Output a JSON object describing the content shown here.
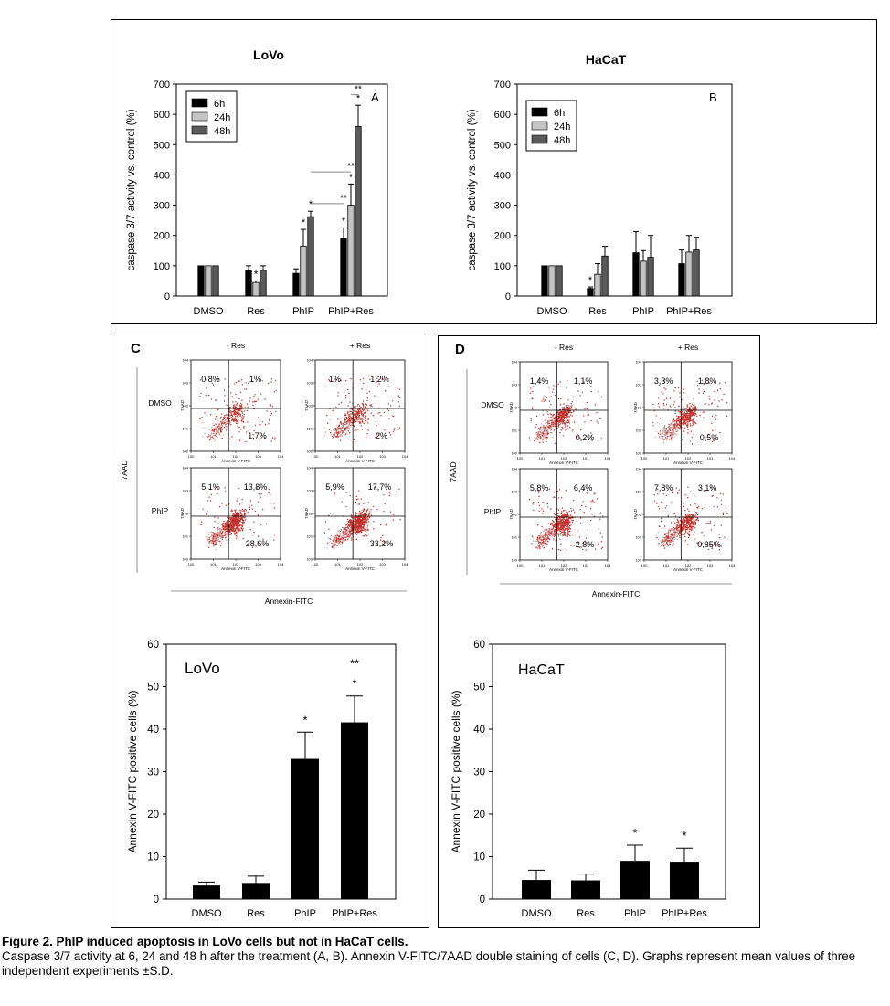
{
  "panels": {
    "A": {
      "letter": "A",
      "title": "LoVo"
    },
    "B": {
      "letter": "B",
      "title": "HaCaT"
    },
    "C": {
      "letter": "C"
    },
    "D": {
      "letter": "D"
    }
  },
  "colors": {
    "h6": "#000000",
    "h24": "#c4c4c4",
    "h48": "#5a5a5a",
    "dot": "#c0302a",
    "bar": "#000000"
  },
  "chart_data": [
    {
      "id": "A",
      "type": "bar",
      "title": "LoVo",
      "panel_letter": "A",
      "categories": [
        "DMSO",
        "Res",
        "PhIP",
        "PhIP+Res"
      ],
      "ylabel": "caspase 3/7 activity vs. control (%)",
      "xlabel": "",
      "ylim": [
        0,
        700
      ],
      "yticks": [
        0,
        100,
        200,
        300,
        400,
        500,
        600,
        700
      ],
      "legend_position": "top-left",
      "series": [
        {
          "name": "6h",
          "color": "#000000",
          "values": [
            100,
            85,
            75,
            190
          ],
          "errors": [
            0,
            15,
            15,
            35
          ]
        },
        {
          "name": "24h",
          "color": "#c4c4c4",
          "values": [
            100,
            45,
            165,
            300
          ],
          "errors": [
            0,
            5,
            55,
            70
          ]
        },
        {
          "name": "48h",
          "color": "#5a5a5a",
          "values": [
            100,
            85,
            262,
            560
          ],
          "errors": [
            0,
            15,
            18,
            70
          ]
        }
      ],
      "annotations": [
        {
          "label": "*",
          "cat": 1,
          "s": 1
        },
        {
          "label": "*",
          "cat": 2,
          "s": 1
        },
        {
          "label": "*",
          "cat": 2,
          "s": 2
        },
        {
          "label": "*",
          "cat": 3,
          "s": 0
        },
        {
          "label": "*",
          "cat": 3,
          "s": 1
        },
        {
          "label": "*",
          "cat": 3,
          "s": 2
        },
        {
          "label": "**",
          "cat": 3,
          "s": 0,
          "line_to": [
            2,
            2
          ],
          "y": 305
        },
        {
          "label": "**",
          "cat": 3,
          "s": 1,
          "line_to": [
            2,
            2
          ],
          "y": 410
        },
        {
          "label": "**",
          "cat": 3,
          "s": 2,
          "line_to": [
            3,
            1
          ],
          "y": 665
        }
      ]
    },
    {
      "id": "B",
      "type": "bar",
      "title": "HaCaT",
      "panel_letter": "B",
      "categories": [
        "DMSO",
        "Res",
        "PhIP",
        "PhIP+Res"
      ],
      "ylabel": "caspase 3/7 activity vs. control (%)",
      "xlabel": "",
      "ylim": [
        0,
        700
      ],
      "yticks": [
        0,
        100,
        200,
        300,
        400,
        500,
        600,
        700
      ],
      "legend_position": "top-left",
      "series": [
        {
          "name": "6h",
          "color": "#000000",
          "values": [
            100,
            25,
            143,
            107
          ],
          "errors": [
            0,
            5,
            70,
            45
          ]
        },
        {
          "name": "24h",
          "color": "#c4c4c4",
          "values": [
            100,
            72,
            115,
            145
          ],
          "errors": [
            0,
            35,
            35,
            55
          ]
        },
        {
          "name": "48h",
          "color": "#5a5a5a",
          "values": [
            100,
            132,
            128,
            152
          ],
          "errors": [
            0,
            32,
            72,
            42
          ]
        }
      ],
      "annotations": [
        {
          "label": "*",
          "cat": 1,
          "s": 0
        }
      ]
    },
    {
      "id": "C",
      "type": "bar",
      "title": "LoVo",
      "categories": [
        "DMSO",
        "Res",
        "PhIP",
        "PhIP+Res"
      ],
      "ylabel": "Annexin V-FITC positive cells (%)",
      "xlabel": "",
      "ylim": [
        0,
        60
      ],
      "yticks": [
        0,
        10,
        20,
        30,
        40,
        50,
        60
      ],
      "values": [
        3.2,
        3.8,
        33.0,
        41.6
      ],
      "errors": [
        0.8,
        1.6,
        6.3,
        6.2
      ],
      "annotations": [
        {
          "label": "*",
          "cat": 2
        },
        {
          "label": "*",
          "cat": 3
        },
        {
          "label": "**",
          "cat": 3
        }
      ]
    },
    {
      "id": "D",
      "type": "bar",
      "title": "HaCaT",
      "categories": [
        "DMSO",
        "Res",
        "PhIP",
        "PhIP+Res"
      ],
      "ylabel": "Annexin V-FITC positive cells (%)",
      "xlabel": "",
      "ylim": [
        0,
        60
      ],
      "yticks": [
        0,
        10,
        20,
        30,
        40,
        50,
        60
      ],
      "values": [
        4.5,
        4.4,
        9.0,
        8.8
      ],
      "errors": [
        2.3,
        1.5,
        3.7,
        3.2
      ],
      "annotations": [
        {
          "label": "*",
          "cat": 2
        },
        {
          "label": "*",
          "cat": 3
        }
      ]
    }
  ],
  "flow": {
    "C": {
      "col_headers": [
        "- Res",
        "+ Res"
      ],
      "row_headers": [
        "DMSO",
        "PhIP"
      ],
      "y_axis_label": "7AAD",
      "x_axis_label": "Annexin-FITC",
      "plots": [
        {
          "ul": "0,8%",
          "ur": "1%",
          "lr": "1,7%",
          "density": 0.35
        },
        {
          "ul": "1%",
          "ur": "1,2%",
          "lr": "2%",
          "density": 0.35
        },
        {
          "ul": "5,1%",
          "ur": "13,8%",
          "lr": "28,6%",
          "density": 1.0
        },
        {
          "ul": "5,9%",
          "ur": "17,7%",
          "lr": "33,2%",
          "density": 1.0
        }
      ],
      "tiny_y": "7AAD",
      "tiny_x": "Annexin V-FITC"
    },
    "D": {
      "col_headers": [
        "- Res",
        "+ Res"
      ],
      "row_headers": [
        "DMSO",
        "PhIP"
      ],
      "y_axis_label": "7AAD",
      "x_axis_label": "Annexin-FITC",
      "plots": [
        {
          "ul": "1,4%",
          "ur": "1,1%",
          "lr": "0,2%",
          "density": 0.6
        },
        {
          "ul": "3,3%",
          "ur": "1,8%",
          "lr": "0,5%",
          "density": 0.6
        },
        {
          "ul": "5,8%",
          "ur": "6,4%",
          "lr": "2,8%",
          "density": 0.8
        },
        {
          "ul": "7,8%",
          "ur": "3,1%",
          "lr": "0,85%",
          "density": 0.6
        }
      ],
      "tiny_y": "7AAD",
      "tiny_x": "Annexin V-FITC"
    }
  },
  "caption": {
    "title": "Figure 2. PhIP induced apoptosis in LoVo cells but not in HaCaT cells.",
    "text": "Caspase 3/7 activity at 6, 24 and 48 h after the treatment (A, B). Annexin V-FITC/7AAD double staining of cells (C, D). Graphs represent mean values of three independent experiments ±S.D."
  }
}
